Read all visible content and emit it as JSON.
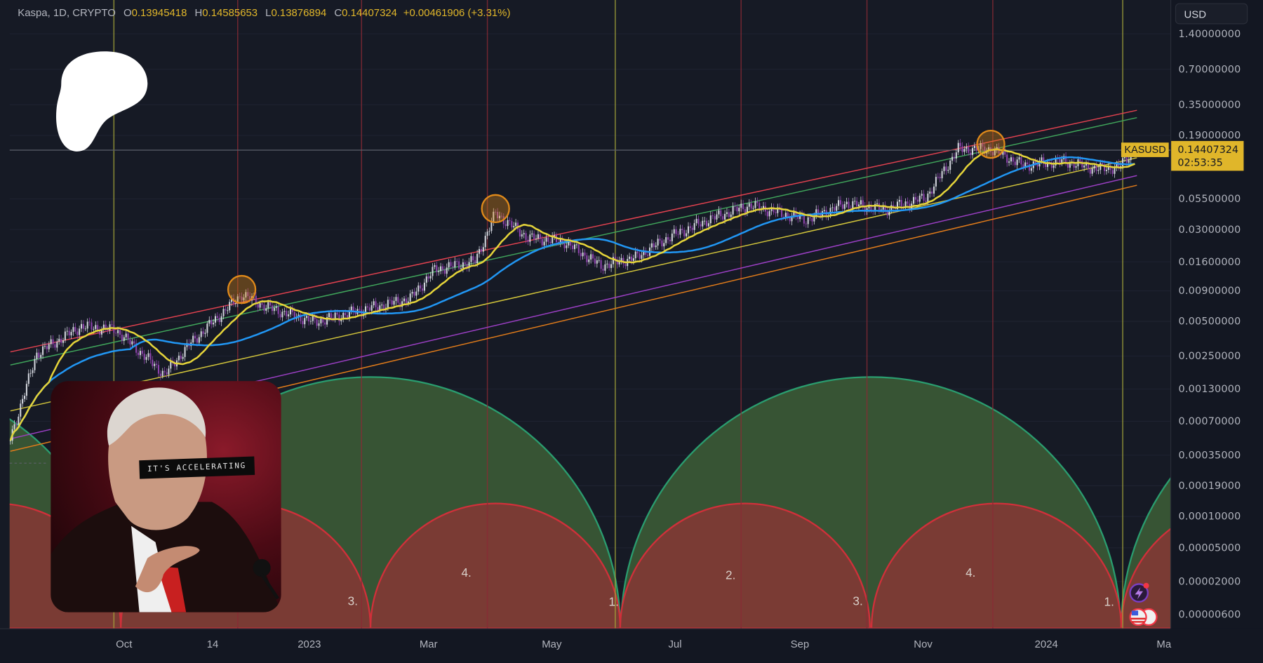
{
  "legend": {
    "symbol": "Kaspa, 1D, CRYPTO",
    "open_key": "O",
    "open": "0.13945418",
    "high_key": "H",
    "high": "0.14585653",
    "low_key": "L",
    "low": "0.13876894",
    "close_key": "C",
    "close": "0.14407324",
    "change": "+0.00461906 (+3.31%)"
  },
  "price_axis": {
    "currency": "USD",
    "ticks": [
      "1.40000000",
      "0.70000000",
      "0.35000000",
      "0.19000000",
      "0.05500000",
      "0.03000000",
      "0.01600000",
      "0.00900000",
      "0.00500000",
      "0.00250000",
      "0.00130000",
      "0.00070000",
      "0.00035000",
      "0.00019000",
      "0.00010000",
      "0.00005000",
      "0.00002000",
      "0.00000600"
    ],
    "last_price": "0.14407324",
    "countdown": "02:53:35",
    "symbol_label": "KASUSD"
  },
  "time_axis": {
    "labels": [
      "Oct",
      "14",
      "2023",
      "Mar",
      "May",
      "Jul",
      "Sep",
      "Nov",
      "2024",
      "Ma"
    ]
  },
  "overlay": {
    "photo_caption": "IT'S ACCELERATING"
  },
  "colors": {
    "background": "#161a25",
    "accent": "#e0b62a",
    "up": "#d1d4dc",
    "down": "#8e44ad",
    "ma_fast": "#e5d43a",
    "ma_slow": "#2196f3",
    "arc_green": "#375434",
    "arc_red": "#7a3b34"
  },
  "icons": [
    "patreon-logo",
    "lightning-icon",
    "us-flag-icon"
  ],
  "chart_data": {
    "type": "candlestick",
    "scale": "log",
    "ylim": [
      6e-06,
      1.4
    ],
    "close_path": [
      [
        "2022-08-06",
        0.00051
      ],
      [
        "2022-08-19",
        0.0027
      ],
      [
        "2022-09-10",
        0.0046
      ],
      [
        "2022-09-27",
        0.0043
      ],
      [
        "2022-10-21",
        0.00179
      ],
      [
        "2022-11-02",
        0.0032
      ],
      [
        "2022-11-28",
        0.0086
      ],
      [
        "2022-12-10",
        0.0067
      ],
      [
        "2023-01-03",
        0.005
      ],
      [
        "2023-01-26",
        0.0063
      ],
      [
        "2023-02-19",
        0.0079
      ],
      [
        "2023-03-03",
        0.0139
      ],
      [
        "2023-03-23",
        0.0164
      ],
      [
        "2023-04-02",
        0.0418
      ],
      [
        "2023-04-18",
        0.026
      ],
      [
        "2023-05-06",
        0.024
      ],
      [
        "2023-05-24",
        0.015
      ],
      [
        "2023-06-10",
        0.0176
      ],
      [
        "2023-06-26",
        0.026
      ],
      [
        "2023-07-16",
        0.037
      ],
      [
        "2023-08-05",
        0.049
      ],
      [
        "2023-09-02",
        0.037
      ],
      [
        "2023-09-22",
        0.051
      ],
      [
        "2023-10-11",
        0.045
      ],
      [
        "2023-10-31",
        0.057
      ],
      [
        "2023-11-16",
        0.147
      ],
      [
        "2023-12-02",
        0.147
      ],
      [
        "2023-12-18",
        0.107
      ],
      [
        "2024-01-07",
        0.116
      ],
      [
        "2024-01-23",
        0.1
      ],
      [
        "2024-02-03",
        0.103
      ],
      [
        "2024-02-11",
        0.144
      ]
    ],
    "channel_lines": [
      {
        "color": "#e0414f",
        "from": [
          "2022-08-06",
          0.00279
        ],
        "to": [
          "2024-02-12",
          0.314
        ]
      },
      {
        "color": "#3fa35a",
        "from": [
          "2022-08-06",
          0.00216
        ],
        "to": [
          "2024-02-12",
          0.272
        ]
      },
      {
        "color": "#cfc23a",
        "from": [
          "2022-08-06",
          0.00088
        ],
        "to": [
          "2024-02-12",
          0.124
        ]
      },
      {
        "color": "#9b3fc4",
        "from": [
          "2022-08-06",
          0.00051
        ],
        "to": [
          "2024-02-12",
          0.0876
        ]
      },
      {
        "color": "#e07b1a",
        "from": [
          "2022-08-06",
          0.0004
        ],
        "to": [
          "2024-02-12",
          0.0725
        ]
      }
    ],
    "peak_markers": [
      [
        "2022-11-28",
        0.0086
      ],
      [
        "2023-04-02",
        0.0418
      ],
      [
        "2023-12-02",
        0.147
      ]
    ],
    "cycle_lines": {
      "yellow": [
        "2022-09-26",
        "2023-05-31",
        "2024-02-05"
      ],
      "red": [
        "2022-11-26",
        "2023-01-26",
        "2023-03-29",
        "2023-08-01",
        "2023-10-02",
        "2023-12-03"
      ]
    },
    "cycle_labels": [
      "3.",
      "4.",
      "1.",
      "2.",
      "3.",
      "4.",
      "1."
    ]
  }
}
